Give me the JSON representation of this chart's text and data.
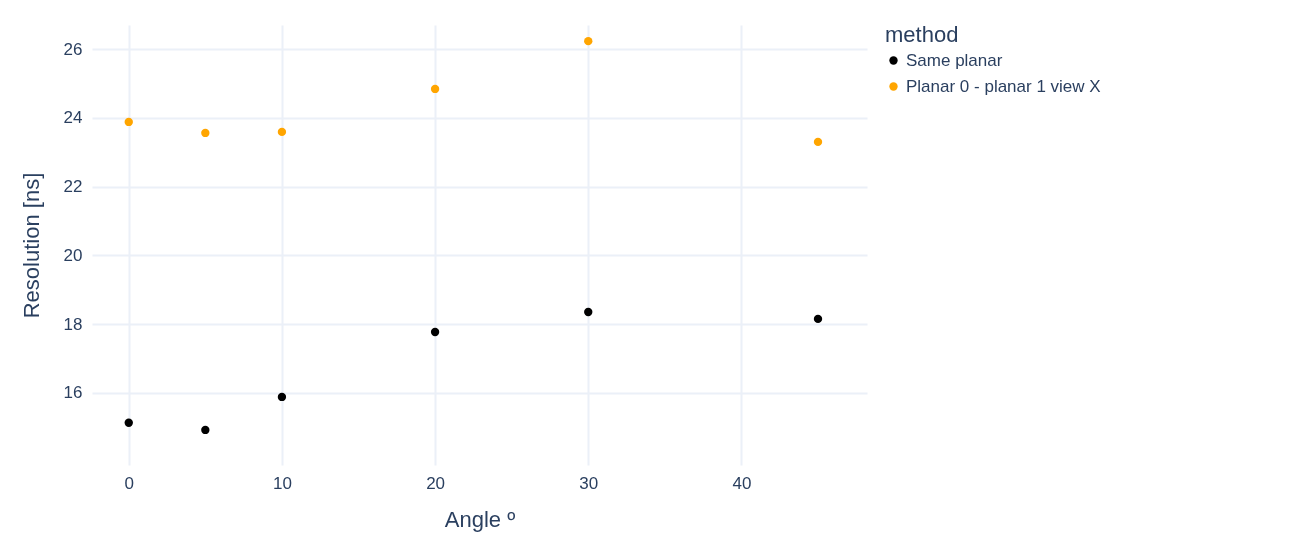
{
  "chart_data": {
    "type": "scatter",
    "xlabel": "Angle º",
    "ylabel": "Resolution [ns]",
    "legend_title": "method",
    "legend": "right",
    "grid": true,
    "marker": "circle",
    "x": [
      0,
      5,
      10,
      20,
      30,
      45
    ],
    "xlim": [
      -2.4,
      48.2
    ],
    "xticks": [
      0,
      10,
      20,
      30,
      40
    ],
    "ylim": [
      13.9,
      26.7
    ],
    "yticks": [
      16,
      18,
      20,
      22,
      24,
      26
    ],
    "series": [
      {
        "name": "Same planar",
        "color": "#000000",
        "values": [
          15.13,
          14.92,
          15.88,
          17.77,
          18.35,
          18.15
        ]
      },
      {
        "name": "Planar 0 - planar 1 view X",
        "color": "#ffa500",
        "values": [
          23.88,
          23.56,
          23.59,
          24.84,
          26.23,
          23.3
        ]
      }
    ]
  }
}
